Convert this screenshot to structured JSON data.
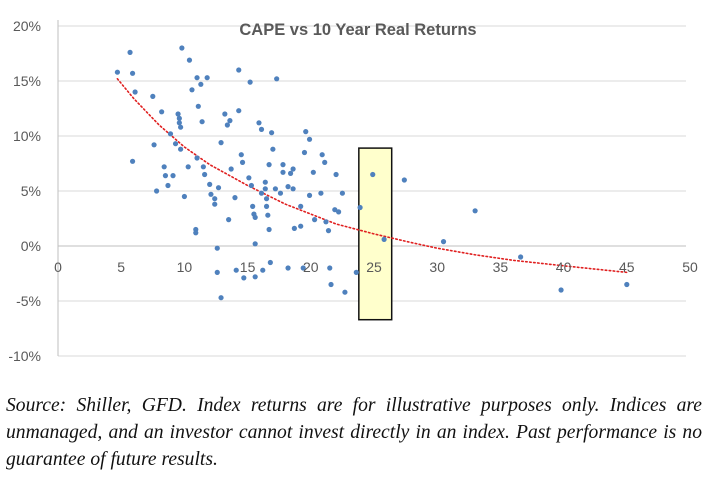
{
  "chart_data": {
    "type": "scatter",
    "title": "CAPE vs 10 Year Real Returns",
    "xlabel": "",
    "ylabel": "",
    "xlim": [
      0,
      50
    ],
    "ylim": [
      -0.1,
      0.2
    ],
    "x_ticks": [
      0,
      5,
      10,
      15,
      20,
      25,
      30,
      35,
      40,
      45,
      50
    ],
    "x_tick_labels": [
      "0",
      "5",
      "10",
      "15",
      "20",
      "25",
      "30",
      "35",
      "40",
      "45",
      "50"
    ],
    "y_ticks": [
      0.2,
      0.15,
      0.1,
      0.05,
      0.0,
      -0.05,
      -0.1
    ],
    "y_tick_labels": [
      "20%",
      "15%",
      "10%",
      "5%",
      "0%",
      "-5%",
      "-10%"
    ],
    "grid": "horizontal",
    "legend": "none",
    "colors": {
      "points": "#4f81bd",
      "trendline": "#e02020",
      "highlight_fill": "#ffffcc",
      "highlight_border": "#111111",
      "axis": "#bfbfbf",
      "grid": "#d9d9d9",
      "tick_text": "#595959",
      "title": "#595959"
    },
    "trendline": {
      "type": "logarithmic",
      "style": "dotted",
      "x_range": [
        4.7,
        45
      ],
      "points": [
        [
          4.7,
          0.152
        ],
        [
          6,
          0.134
        ],
        [
          8,
          0.11
        ],
        [
          10,
          0.09
        ],
        [
          12,
          0.074
        ],
        [
          15,
          0.055
        ],
        [
          18,
          0.038
        ],
        [
          20,
          0.029
        ],
        [
          22,
          0.02
        ],
        [
          25,
          0.011
        ],
        [
          28,
          0.003
        ],
        [
          30,
          -0.002
        ],
        [
          33,
          -0.008
        ],
        [
          36,
          -0.013
        ],
        [
          40,
          -0.018
        ],
        [
          45,
          -0.024
        ]
      ]
    },
    "highlight_region": {
      "x_range": [
        23.8,
        26.4
      ],
      "y_range": [
        -0.067,
        0.089
      ]
    },
    "points": [
      [
        4.7,
        0.158
      ],
      [
        5.7,
        0.176
      ],
      [
        5.9,
        0.157
      ],
      [
        6.1,
        0.14
      ],
      [
        5.9,
        0.077
      ],
      [
        7.5,
        0.136
      ],
      [
        8.2,
        0.122
      ],
      [
        7.6,
        0.092
      ],
      [
        7.8,
        0.05
      ],
      [
        8.4,
        0.072
      ],
      [
        8.5,
        0.064
      ],
      [
        8.7,
        0.055
      ],
      [
        8.9,
        0.102
      ],
      [
        9.3,
        0.093
      ],
      [
        9.5,
        0.12
      ],
      [
        9.6,
        0.112
      ],
      [
        9.7,
        0.108
      ],
      [
        9.7,
        0.088
      ],
      [
        9.6,
        0.116
      ],
      [
        9.1,
        0.064
      ],
      [
        10.0,
        0.045
      ],
      [
        10.3,
        0.072
      ],
      [
        9.8,
        0.18
      ],
      [
        10.4,
        0.169
      ],
      [
        10.6,
        0.142
      ],
      [
        11.0,
        0.153
      ],
      [
        11.3,
        0.147
      ],
      [
        11.1,
        0.127
      ],
      [
        11.4,
        0.113
      ],
      [
        11.0,
        0.08
      ],
      [
        11.5,
        0.072
      ],
      [
        11.6,
        0.065
      ],
      [
        11.8,
        0.153
      ],
      [
        12.1,
        0.047
      ],
      [
        12.4,
        0.038
      ],
      [
        12.0,
        0.056
      ],
      [
        10.9,
        0.015
      ],
      [
        10.9,
        0.012
      ],
      [
        12.7,
        0.053
      ],
      [
        12.4,
        0.043
      ],
      [
        12.6,
        -0.002
      ],
      [
        12.6,
        -0.024
      ],
      [
        12.9,
        0.094
      ],
      [
        12.9,
        -0.047
      ],
      [
        13.2,
        0.12
      ],
      [
        13.4,
        0.11
      ],
      [
        13.6,
        0.114
      ],
      [
        13.5,
        0.024
      ],
      [
        13.7,
        0.07
      ],
      [
        14.0,
        0.044
      ],
      [
        14.1,
        -0.022
      ],
      [
        14.3,
        0.123
      ],
      [
        14.3,
        0.16
      ],
      [
        14.5,
        0.083
      ],
      [
        14.6,
        0.076
      ],
      [
        14.7,
        -0.029
      ],
      [
        15.2,
        0.149
      ],
      [
        15.1,
        0.062
      ],
      [
        15.3,
        0.055
      ],
      [
        15.4,
        0.036
      ],
      [
        15.5,
        0.029
      ],
      [
        15.6,
        0.026
      ],
      [
        15.6,
        0.002
      ],
      [
        15.6,
        -0.028
      ],
      [
        15.9,
        0.112
      ],
      [
        16.1,
        0.106
      ],
      [
        16.1,
        0.048
      ],
      [
        16.4,
        0.058
      ],
      [
        16.4,
        0.052
      ],
      [
        16.5,
        0.043
      ],
      [
        16.5,
        0.036
      ],
      [
        16.7,
        0.074
      ],
      [
        16.6,
        0.028
      ],
      [
        16.7,
        0.015
      ],
      [
        16.8,
        -0.015
      ],
      [
        16.9,
        0.103
      ],
      [
        17.0,
        0.088
      ],
      [
        16.2,
        -0.022
      ],
      [
        17.3,
        0.152
      ],
      [
        17.2,
        0.052
      ],
      [
        17.6,
        0.048
      ],
      [
        17.8,
        0.074
      ],
      [
        17.8,
        0.067
      ],
      [
        18.2,
        0.054
      ],
      [
        18.4,
        0.066
      ],
      [
        18.6,
        0.052
      ],
      [
        18.6,
        0.07
      ],
      [
        18.7,
        0.016
      ],
      [
        18.2,
        -0.02
      ],
      [
        19.2,
        0.036
      ],
      [
        19.2,
        0.018
      ],
      [
        19.4,
        -0.02
      ],
      [
        19.6,
        0.104
      ],
      [
        19.5,
        0.085
      ],
      [
        19.9,
        0.097
      ],
      [
        19.9,
        0.046
      ],
      [
        20.2,
        0.067
      ],
      [
        20.3,
        0.024
      ],
      [
        20.8,
        0.048
      ],
      [
        20.9,
        0.083
      ],
      [
        21.1,
        0.076
      ],
      [
        21.2,
        0.022
      ],
      [
        21.4,
        0.014
      ],
      [
        21.5,
        -0.02
      ],
      [
        21.6,
        -0.035
      ],
      [
        21.9,
        0.033
      ],
      [
        22.0,
        0.065
      ],
      [
        22.2,
        0.031
      ],
      [
        22.5,
        0.048
      ],
      [
        22.7,
        -0.042
      ],
      [
        23.6,
        -0.024
      ],
      [
        23.9,
        0.035
      ],
      [
        24.9,
        0.065
      ],
      [
        25.8,
        0.006
      ],
      [
        27.4,
        0.06
      ],
      [
        30.5,
        0.004
      ],
      [
        33.0,
        0.032
      ],
      [
        36.6,
        -0.01
      ],
      [
        39.8,
        -0.04
      ],
      [
        45.0,
        -0.035
      ]
    ]
  },
  "caption": "Source: Shiller, GFD. Index returns are for illustrative purposes only. Indices are unmanaged, and an investor cannot invest directly in an index. Past performance is no guarantee of future results."
}
